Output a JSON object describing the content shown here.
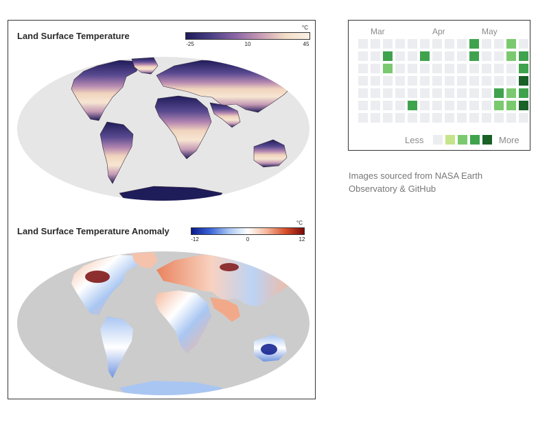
{
  "figure": {
    "top_map": {
      "title": "Land Surface Temperature",
      "unit": "°C",
      "ticks": [
        "-25",
        "10",
        "45"
      ],
      "colormap": [
        "#1f1c5a",
        "#4a3f86",
        "#8a66a6",
        "#c899b5",
        "#f2dcc6",
        "#fbf2e6"
      ],
      "background_color": "#e6e6e6"
    },
    "bottom_map": {
      "title": "Land Surface Temperature Anomaly",
      "unit": "°C",
      "ticks": [
        "-12",
        "0",
        "12"
      ],
      "colormap": [
        "#0b1a8c",
        "#3c64d8",
        "#a9c6f2",
        "#ffffff",
        "#f5b89c",
        "#d9502a",
        "#7a0a0a"
      ],
      "background_color": "#cccccc"
    }
  },
  "contributions": {
    "months": [
      "Mar",
      "Apr",
      "May"
    ],
    "legend_less": "Less",
    "legend_more": "More",
    "level_colors": [
      "#ebedf0",
      "#c6e48b",
      "#7bc96f",
      "#3fa34d",
      "#196127"
    ],
    "weeks": [
      [
        0,
        0,
        0,
        0,
        0,
        0,
        0
      ],
      [
        0,
        0,
        0,
        0,
        0,
        0,
        0
      ],
      [
        0,
        3,
        2,
        0,
        0,
        0,
        0
      ],
      [
        0,
        0,
        0,
        0,
        0,
        0,
        0
      ],
      [
        0,
        0,
        0,
        0,
        0,
        3,
        0
      ],
      [
        0,
        3,
        0,
        0,
        0,
        0,
        0
      ],
      [
        0,
        0,
        0,
        0,
        0,
        0,
        0
      ],
      [
        0,
        0,
        0,
        0,
        0,
        0,
        0
      ],
      [
        0,
        0,
        0,
        0,
        0,
        0,
        0
      ],
      [
        3,
        3,
        0,
        0,
        0,
        0,
        0
      ],
      [
        0,
        0,
        0,
        0,
        0,
        0,
        0
      ],
      [
        0,
        0,
        0,
        0,
        3,
        2,
        0
      ],
      [
        2,
        2,
        0,
        0,
        2,
        2,
        0
      ],
      [
        0,
        3,
        3,
        4,
        3,
        4,
        0
      ]
    ]
  },
  "caption": "Images sourced from NASA Earth Observatory & GitHub"
}
